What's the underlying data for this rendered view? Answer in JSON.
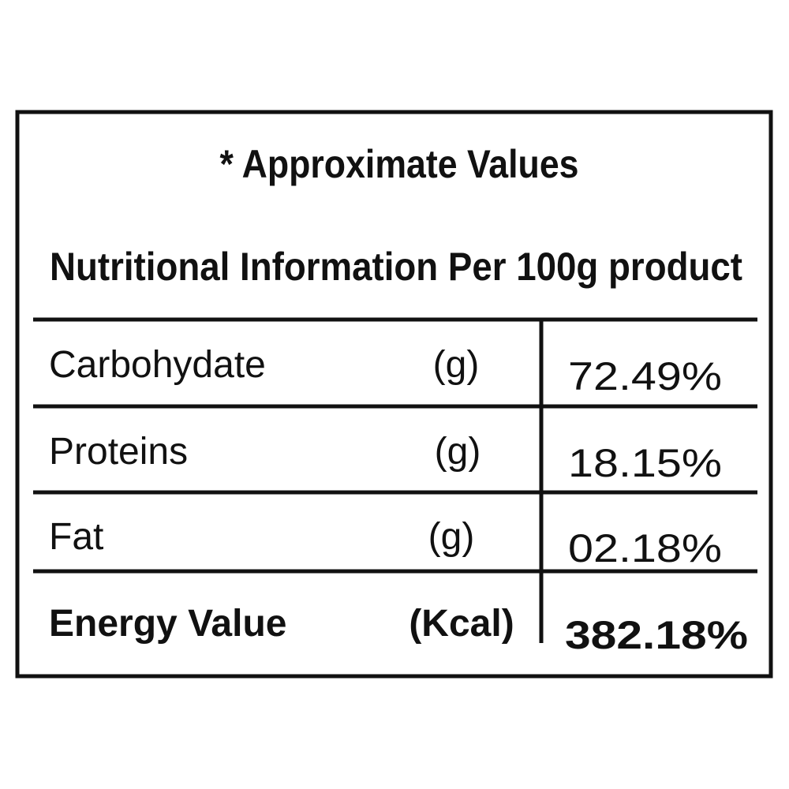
{
  "header": {
    "note": "* Approximate Values",
    "title": "Nutritional Information Per 100g product"
  },
  "table": {
    "rows": [
      [
        "Carbohydate",
        "(g)",
        "72.49%"
      ],
      [
        "Proteins",
        "(g)",
        "18.15%"
      ],
      [
        "Fat",
        "(g)",
        "02.18%"
      ],
      [
        "Energy Value",
        "(Kcal)",
        "382.18%"
      ]
    ]
  }
}
